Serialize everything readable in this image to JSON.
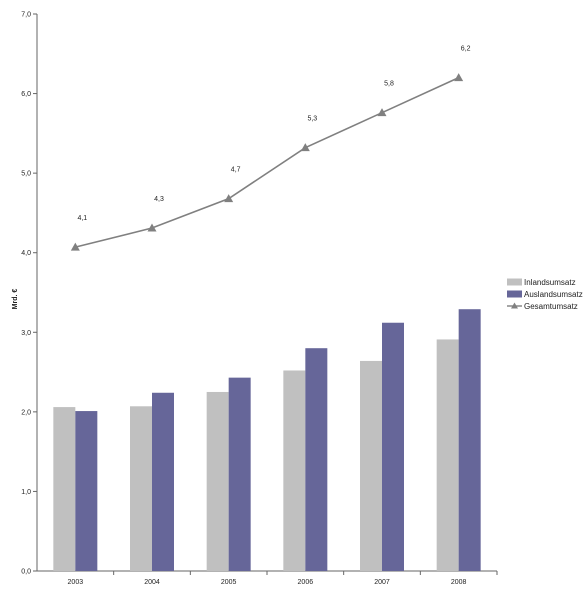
{
  "chart_data": {
    "type": "bar",
    "title": "",
    "xlabel": "",
    "ylabel": "Mrd. €",
    "ylim": [
      0,
      7
    ],
    "y_ticks": [
      "0,0",
      "1,0",
      "2,0",
      "3,0",
      "4,0",
      "5,0",
      "6,0",
      "7,0"
    ],
    "grid": false,
    "legend_position": "right",
    "categories": [
      "2003",
      "2004",
      "2005",
      "2006",
      "2007",
      "2008"
    ],
    "series": [
      {
        "name": "Inlandsumsatz",
        "kind": "bar",
        "color": "#c0c0c0",
        "values": [
          2.06,
          2.07,
          2.25,
          2.52,
          2.64,
          2.91
        ]
      },
      {
        "name": "Auslandsumsatz",
        "kind": "bar",
        "color": "#666699",
        "values": [
          2.01,
          2.24,
          2.43,
          2.8,
          3.12,
          3.29
        ]
      },
      {
        "name": "Gesamtumsatz",
        "kind": "line",
        "color": "#808080",
        "marker": "triangle",
        "values": [
          4.07,
          4.31,
          4.68,
          5.32,
          5.76,
          6.2
        ],
        "data_labels": [
          "4,1",
          "4,3",
          "4,7",
          "5,3",
          "5,8",
          "6,2"
        ]
      }
    ]
  }
}
